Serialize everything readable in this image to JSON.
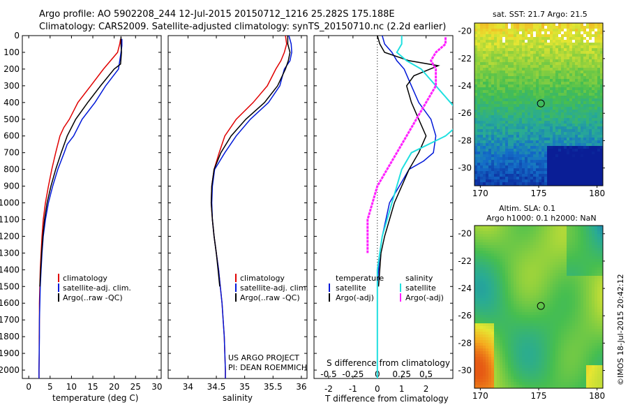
{
  "header": {
    "line1": "Argo profile: AO 5902208_244 12-Jul-2015 20150712_1216 25.282S 175.188E",
    "line2": "Climatology: CARS2009. Satellite-adjusted climatology: synTS_20150710.nc (2.2d earlier)"
  },
  "colors": {
    "climatology": "#e00000",
    "satellite": "#0018d8",
    "argo": "#000000",
    "cyan": "#20e0e0",
    "magenta": "#ff20ff"
  },
  "chart_data": [
    {
      "type": "line",
      "xlabel": "temperature (deg C)",
      "ylabel": "",
      "xlim": [
        -1.5,
        31
      ],
      "ylim": [
        2050,
        0
      ],
      "xticks": [
        0,
        5,
        10,
        15,
        20,
        25,
        30
      ],
      "yticks": [
        0,
        100,
        200,
        300,
        400,
        500,
        600,
        700,
        800,
        900,
        1000,
        1100,
        1200,
        1300,
        1400,
        1500,
        1600,
        1700,
        1800,
        1900,
        2000
      ],
      "legend": [
        "climatology",
        "satellite-adj. clim.",
        "Argo(..raw -QC)"
      ],
      "series": [
        {
          "name": "climatology",
          "color": "#e00000",
          "x": [
            21.5,
            21.3,
            20.8,
            17.5,
            14.5,
            11.5,
            9.5,
            8.2,
            7.3,
            6.3,
            5.4,
            4.6,
            3.9,
            3.4,
            3.1,
            2.9,
            2.7,
            2.6,
            2.5,
            2.5,
            2.45,
            2.45,
            2.4,
            2.4
          ],
          "y": [
            20,
            50,
            100,
            200,
            300,
            400,
            500,
            550,
            600,
            700,
            800,
            900,
            1000,
            1100,
            1200,
            1300,
            1400,
            1500,
            1600,
            1700,
            1800,
            1900,
            2000,
            2050
          ]
        },
        {
          "name": "satellite-adj. clim.",
          "color": "#0018d8",
          "x": [
            21.8,
            21.8,
            21.6,
            21.0,
            18.0,
            15.5,
            12.5,
            10.5,
            9.0,
            8.3,
            6.8,
            5.6,
            4.6,
            3.9,
            3.4,
            3.1,
            2.9,
            2.7,
            2.6,
            2.5,
            2.5,
            2.45,
            2.4,
            2.4
          ],
          "y": [
            20,
            60,
            100,
            200,
            300,
            400,
            500,
            600,
            650,
            700,
            800,
            900,
            1000,
            1100,
            1200,
            1300,
            1400,
            1500,
            1600,
            1700,
            1800,
            1900,
            2000,
            2050
          ]
        },
        {
          "name": "Argo(..raw -QC)",
          "color": "#000000",
          "x": [
            21.6,
            21.6,
            21.7,
            21.5,
            20.0,
            16.8,
            13.8,
            11.0,
            9.0,
            7.6,
            6.3,
            5.2,
            4.3,
            3.7,
            3.3,
            3.0,
            2.8,
            2.6
          ],
          "y": [
            5,
            50,
            100,
            170,
            200,
            300,
            400,
            500,
            600,
            700,
            800,
            900,
            1000,
            1100,
            1200,
            1300,
            1400,
            1500
          ]
        }
      ]
    },
    {
      "type": "line",
      "xlabel": "salinity",
      "ylabel": "",
      "xlim": [
        33.65,
        36.1
      ],
      "ylim": [
        2050,
        0
      ],
      "xticks": [
        34,
        34.5,
        35,
        35.5,
        36
      ],
      "xticklabels": [
        "34",
        "34.5",
        "35",
        "35.5",
        "36"
      ],
      "legend": [
        "climatology",
        "satellite-adj. clim.",
        "Argo(..raw -QC)"
      ],
      "series": [
        {
          "name": "climatology",
          "color": "#e00000",
          "x": [
            35.72,
            35.74,
            35.7,
            35.64,
            35.55,
            35.4,
            35.15,
            34.85,
            34.65,
            34.55,
            34.46,
            34.42,
            34.41,
            34.43,
            34.46,
            34.5,
            34.54,
            34.57,
            34.6,
            34.62,
            34.64,
            34.65,
            34.66,
            34.66
          ],
          "y": [
            0,
            50,
            100,
            150,
            200,
            300,
            400,
            500,
            600,
            700,
            800,
            900,
            1000,
            1100,
            1200,
            1300,
            1400,
            1500,
            1600,
            1700,
            1800,
            1900,
            2000,
            2050
          ]
        },
        {
          "name": "satellite-adj. clim.",
          "color": "#0018d8",
          "x": [
            35.78,
            35.82,
            35.83,
            35.8,
            35.7,
            35.62,
            35.42,
            35.1,
            34.85,
            34.65,
            34.47,
            34.43,
            34.42,
            34.43,
            34.46,
            34.5,
            34.54,
            34.57,
            34.6,
            34.62,
            34.64,
            34.65,
            34.66,
            34.66
          ],
          "y": [
            0,
            50,
            100,
            150,
            200,
            300,
            400,
            500,
            600,
            700,
            800,
            900,
            1000,
            1100,
            1200,
            1300,
            1400,
            1500,
            1600,
            1700,
            1800,
            1900,
            2000,
            2050
          ]
        },
        {
          "name": "Argo(..raw -QC)",
          "color": "#000000",
          "x": [
            35.76,
            35.76,
            35.8,
            35.77,
            35.72,
            35.58,
            35.35,
            35.02,
            34.76,
            34.58,
            34.46,
            34.42,
            34.41,
            34.43,
            34.46,
            34.5,
            34.53,
            34.56
          ],
          "y": [
            0,
            50,
            100,
            150,
            200,
            300,
            400,
            500,
            600,
            700,
            800,
            900,
            1000,
            1100,
            1200,
            1300,
            1400,
            1500
          ]
        }
      ],
      "annotations": [
        "US ARGO PROJECT",
        "PI: DEAN ROEMMICH"
      ]
    },
    {
      "type": "line",
      "xlabel": "T difference from climatology",
      "xlabel_top": "S difference from climatology",
      "xlim": [
        -2.6,
        3.1
      ],
      "ylim": [
        2050,
        0
      ],
      "xticks": [
        -2,
        -1,
        0,
        1,
        2
      ],
      "xticks_s": [
        -0.5,
        -0.25,
        0,
        0.25,
        0.5
      ],
      "xticklabels_s": [
        "-0.5",
        "-0.25",
        "0",
        "0.25",
        "0.5"
      ],
      "legend_temperature": [
        "temperature",
        "satellite",
        "Argo(-adj)"
      ],
      "legend_salinity": [
        "salinity",
        "satellite",
        "Argo(-adj)"
      ],
      "series": [
        {
          "name": "satellite",
          "group": "temperature",
          "color": "#0018d8",
          "x": [
            0.2,
            0.3,
            0.6,
            0.8,
            1.1,
            1.4,
            1.7,
            2.2,
            2.4,
            2.3,
            1.9,
            1.3,
            0.9,
            0.5,
            0.35,
            0.2,
            0.1,
            0.05,
            0.0,
            0.0,
            0.0,
            0.0
          ],
          "y": [
            0,
            50,
            100,
            150,
            200,
            300,
            400,
            500,
            600,
            700,
            750,
            800,
            900,
            1000,
            1100,
            1200,
            1300,
            1400,
            1500,
            1700,
            1900,
            2050
          ]
        },
        {
          "name": "Argo(-adj)",
          "group": "temperature",
          "color": "#000000",
          "x": [
            0.0,
            0.1,
            0.3,
            1.3,
            2.5,
            1.5,
            1.2,
            1.4,
            1.7,
            2.0,
            1.7,
            1.3,
            1.0,
            0.7,
            0.5,
            0.3,
            0.15,
            0.05
          ],
          "y": [
            0,
            50,
            100,
            150,
            180,
            240,
            300,
            400,
            500,
            600,
            700,
            800,
            900,
            1000,
            1100,
            1200,
            1300,
            1500
          ]
        },
        {
          "name": "satellite",
          "group": "salinity",
          "color": "#20e0e0",
          "x": [
            0.25,
            0.25,
            0.2,
            0.3,
            0.45,
            0.6,
            0.75,
            0.9,
            0.7,
            0.35,
            0.25,
            0.2,
            0.15,
            0.1,
            0.05,
            0.0,
            0.0,
            0.0,
            0.0,
            0.0
          ],
          "y": [
            0,
            50,
            100,
            150,
            200,
            300,
            400,
            500,
            600,
            700,
            800,
            900,
            1000,
            1100,
            1200,
            1400,
            1500,
            1700,
            1900,
            2050
          ]
        },
        {
          "name": "Argo(-adj)",
          "group": "salinity",
          "color": "#ff20ff",
          "x": [
            0.7,
            0.7,
            0.6,
            0.55,
            0.6,
            0.6,
            0.5,
            0.4,
            0.3,
            0.2,
            0.1,
            0.0,
            -0.05,
            -0.1,
            -0.1,
            -0.1
          ],
          "y": [
            10,
            50,
            100,
            150,
            200,
            300,
            400,
            500,
            600,
            700,
            800,
            900,
            1000,
            1100,
            1200,
            1300
          ]
        }
      ]
    },
    {
      "type": "heatmap",
      "title": "sat. SST: 21.7 Argo: 21.5",
      "xticks": [
        170,
        175,
        180
      ],
      "yticks": [
        -20,
        -22,
        -24,
        -26,
        -28,
        -30
      ],
      "xlim": [
        169.5,
        180.5
      ],
      "ylim": [
        -31.3,
        -19.4
      ],
      "marker": {
        "lon": 175.188,
        "lat": -25.282
      }
    },
    {
      "type": "heatmap",
      "title_line1": "Altim. SLA: 0.1",
      "title_line2": "Argo h1000: 0.1 h2000: NaN",
      "xticks": [
        170,
        175,
        180
      ],
      "yticks": [
        -20,
        -22,
        -24,
        -26,
        -28,
        -30
      ],
      "xlim": [
        169.5,
        180.5
      ],
      "ylim": [
        -31.3,
        -19.4
      ],
      "marker": {
        "lon": 175.188,
        "lat": -25.282
      }
    }
  ],
  "side_text": "©IMOS 18-Jul-2015 20:42:12"
}
